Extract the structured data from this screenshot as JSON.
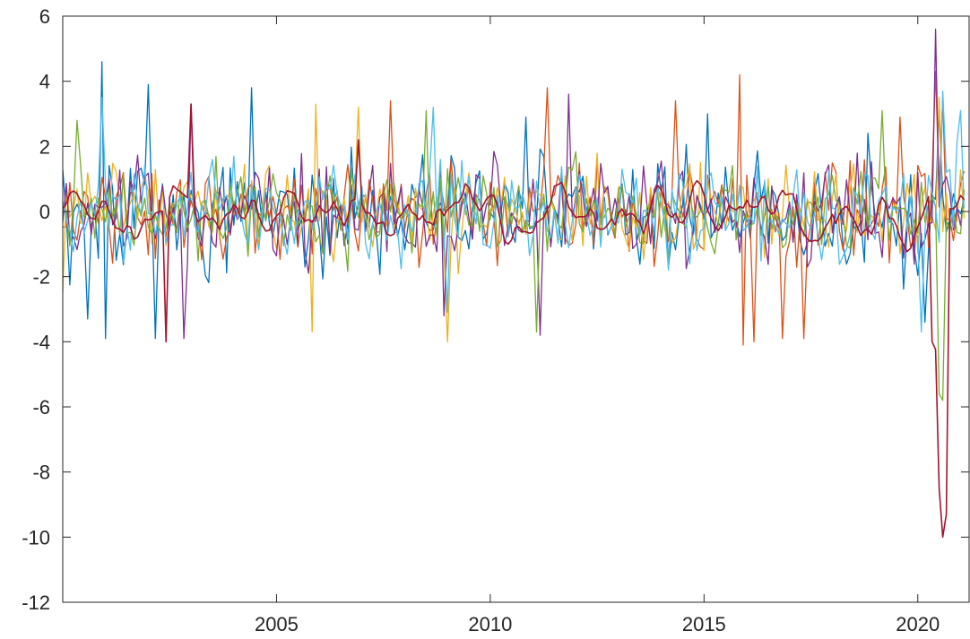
{
  "chart_data": {
    "type": "line",
    "title": "",
    "xlabel": "",
    "ylabel": "",
    "xlim": [
      2000.0,
      2021.2
    ],
    "ylim": [
      -12,
      6
    ],
    "xticks": [
      2005,
      2010,
      2015,
      2020
    ],
    "yticks": [
      6,
      4,
      2,
      0,
      -2,
      -4,
      -6,
      -8,
      -10,
      -12
    ],
    "grid": false,
    "legend": "none",
    "x_start": 2000.0,
    "x_step_months": 1,
    "n_points": 254,
    "series": [
      {
        "color": "#0072BD",
        "amplitude": 1.3,
        "seed": 11,
        "events": [
          [
            2000.9,
            4.6
          ],
          [
            2001.0,
            -3.9
          ],
          [
            2000.6,
            -3.3
          ],
          [
            2002.0,
            3.9
          ],
          [
            2002.2,
            -3.9
          ],
          [
            2004.4,
            3.8
          ],
          [
            2010.8,
            2.9
          ],
          [
            2015.1,
            3.0
          ],
          [
            2020.2,
            -3.4
          ],
          [
            2020.5,
            3.1
          ]
        ]
      },
      {
        "color": "#D95319",
        "amplitude": 1.1,
        "seed": 23,
        "events": [
          [
            2007.7,
            3.4
          ],
          [
            2011.3,
            3.8
          ],
          [
            2014.3,
            3.4
          ],
          [
            2015.8,
            4.2
          ],
          [
            2015.9,
            -4.1
          ],
          [
            2016.2,
            -4.0
          ],
          [
            2016.8,
            -3.9
          ],
          [
            2017.3,
            -3.9
          ],
          [
            2019.6,
            2.9
          ],
          [
            2020.4,
            4.3
          ],
          [
            2020.6,
            3.5
          ]
        ]
      },
      {
        "color": "#EDB120",
        "amplitude": 1.0,
        "seed": 37,
        "events": [
          [
            2000.0,
            -2.5
          ],
          [
            2005.9,
            3.3
          ],
          [
            2005.8,
            -3.7
          ],
          [
            2006.9,
            3.2
          ],
          [
            2009.0,
            -4.0
          ],
          [
            2020.5,
            3.5
          ]
        ]
      },
      {
        "color": "#7E2F8E",
        "amplitude": 1.1,
        "seed": 41,
        "events": [
          [
            2003.0,
            3.3
          ],
          [
            2002.8,
            -3.9
          ],
          [
            2011.8,
            3.6
          ],
          [
            2011.2,
            -3.8
          ],
          [
            2020.4,
            5.6
          ],
          [
            2008.9,
            -3.2
          ]
        ]
      },
      {
        "color": "#77AC30",
        "amplitude": 1.0,
        "seed": 53,
        "events": [
          [
            2000.3,
            2.8
          ],
          [
            2008.5,
            3.1
          ],
          [
            2011.1,
            -3.7
          ],
          [
            2019.2,
            3.1
          ],
          [
            2020.5,
            -5.6
          ],
          [
            2020.6,
            -5.8
          ]
        ]
      },
      {
        "color": "#4DBEEE",
        "amplitude": 1.1,
        "seed": 67,
        "events": [
          [
            2000.9,
            3.5
          ],
          [
            2008.7,
            3.2
          ],
          [
            2009.0,
            -3.1
          ],
          [
            2020.6,
            3.7
          ],
          [
            2020.1,
            -3.7
          ],
          [
            2021.0,
            3.1
          ]
        ]
      },
      {
        "color": "#A2142F",
        "amplitude": 0.8,
        "seed": 79,
        "smooth": true,
        "events": [
          [
            2003.0,
            3.3
          ],
          [
            2002.4,
            -4.0
          ],
          [
            2006.9,
            2.2
          ],
          [
            2020.3,
            -4.0
          ],
          [
            2020.5,
            -8.5
          ],
          [
            2020.6,
            -10.0
          ],
          [
            2020.7,
            -9.3
          ]
        ]
      }
    ]
  }
}
